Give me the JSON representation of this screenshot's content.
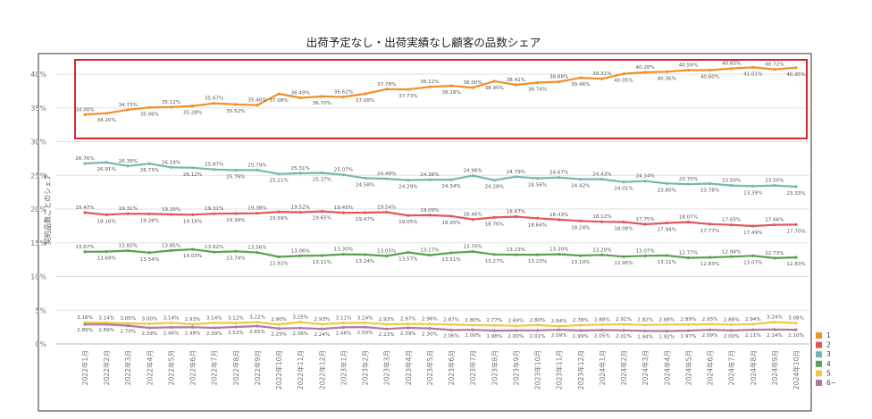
{
  "chart_data": {
    "type": "line",
    "title": "出荷予定なし・出荷実績なし顧客の品数シェア",
    "ylabel": "契約品数ごとのシェア",
    "xlabel": "",
    "ylim": [
      0,
      42
    ],
    "yticks": [
      "0%",
      "5%",
      "10%",
      "15%",
      "20%",
      "25%",
      "30%",
      "35%",
      "40%"
    ],
    "grid": "horizontal",
    "legend_position": "right",
    "highlight_series": "1",
    "highlight_color": "#d62728",
    "categories": [
      "2022年1月",
      "2022年2月",
      "2022年3月",
      "2022年4月",
      "2022年5月",
      "2022年6月",
      "2022年7月",
      "2022年8月",
      "2022年9月",
      "2022年10月",
      "2022年11月",
      "2022年12月",
      "2023年1月",
      "2023年2月",
      "2023年3月",
      "2023年4月",
      "2023年5月",
      "2023年6月",
      "2023年7月",
      "2023年8月",
      "2023年9月",
      "2023年10月",
      "2023年11月",
      "2023年12月",
      "2024年1月",
      "2024年2月",
      "2024年3月",
      "2024年4月",
      "2024年5月",
      "2024年6月",
      "2024年7月",
      "2024年8月",
      "2024年9月",
      "2024年10月"
    ],
    "series": [
      {
        "name": "1",
        "color": "#f28e2b",
        "values": [
          34.0,
          34.2,
          34.73,
          35.06,
          35.12,
          35.28,
          35.67,
          35.52,
          35.4,
          37.08,
          36.49,
          36.7,
          36.62,
          37.08,
          37.78,
          37.73,
          38.12,
          38.28,
          38.0,
          38.95,
          38.41,
          38.74,
          38.88,
          39.46,
          39.31,
          40.05,
          40.28,
          40.36,
          40.59,
          40.6,
          40.83,
          41.01,
          40.72,
          40.95
        ],
        "labels": [
          "34.00%",
          "34.20%",
          "34.73%",
          "35.06%",
          "35.12%",
          "35.28%",
          "35.67%",
          "35.52%",
          "35.40%",
          "37.08%",
          "36.49%",
          "36.70%",
          "36.62%",
          "37.08%",
          "37.78%",
          "37.73%",
          "38.12%",
          "38.28%",
          "38.00%",
          "38.95%",
          "38.41%",
          "38.74%",
          "38.88%",
          "39.46%",
          "39.31%",
          "40.05%",
          "40.28%",
          "40.36%",
          "40.59%",
          "40.60%",
          "40.83%",
          "41.01%",
          "40.72%",
          "40.95%"
        ]
      },
      {
        "name": "3",
        "color": "#76b7b2",
        "values": [
          26.76,
          26.91,
          26.39,
          26.73,
          26.19,
          26.12,
          25.87,
          25.76,
          25.79,
          25.21,
          25.31,
          25.37,
          25.07,
          24.58,
          24.49,
          24.29,
          24.36,
          24.34,
          24.96,
          24.28,
          24.79,
          24.56,
          24.67,
          24.42,
          24.43,
          24.01,
          24.14,
          23.8,
          23.7,
          23.78,
          23.5,
          23.39,
          23.5,
          23.33
        ],
        "labels": [
          "26.76%",
          "26.91%",
          "26.39%",
          "26.73%",
          "26.19%",
          "26.12%",
          "25.87%",
          "25.76%",
          "25.79%",
          "25.21%",
          "25.31%",
          "25.37%",
          "25.07%",
          "24.58%",
          "24.49%",
          "24.29%",
          "24.36%",
          "24.34%",
          "24.96%",
          "24.28%",
          "24.79%",
          "24.56%",
          "24.67%",
          "24.42%",
          "24.43%",
          "24.01%",
          "24.14%",
          "23.80%",
          "23.70%",
          "23.78%",
          "23.50%",
          "23.39%",
          "23.50%",
          "23.33%"
        ]
      },
      {
        "name": "2",
        "color": "#e15759",
        "values": [
          19.47,
          19.16,
          19.31,
          19.28,
          19.2,
          19.16,
          19.31,
          19.34,
          19.38,
          19.59,
          19.52,
          19.65,
          19.45,
          19.47,
          19.54,
          19.05,
          19.09,
          18.95,
          18.46,
          18.76,
          18.87,
          18.64,
          18.43,
          18.24,
          18.12,
          18.08,
          17.75,
          17.94,
          18.07,
          17.77,
          17.65,
          17.49,
          17.66,
          17.7
        ],
        "labels": [
          "19.47%",
          "19.16%",
          "19.31%",
          "19.28%",
          "19.20%",
          "19.16%",
          "19.31%",
          "19.34%",
          "19.38%",
          "19.59%",
          "19.52%",
          "19.65%",
          "19.45%",
          "19.47%",
          "19.54%",
          "19.05%",
          "19.09%",
          "18.95%",
          "18.46%",
          "18.76%",
          "18.87%",
          "18.64%",
          "18.43%",
          "18.24%",
          "18.12%",
          "18.08%",
          "17.75%",
          "17.94%",
          "18.07%",
          "17.77%",
          "17.65%",
          "17.49%",
          "17.66%",
          "17.70%"
        ]
      },
      {
        "name": "4",
        "color": "#59a14f",
        "values": [
          13.67,
          13.69,
          13.83,
          13.54,
          13.85,
          14.03,
          13.62,
          13.74,
          13.56,
          12.92,
          13.06,
          13.11,
          13.3,
          13.24,
          13.05,
          13.57,
          13.17,
          13.51,
          13.7,
          13.27,
          13.23,
          13.23,
          13.3,
          13.1,
          13.2,
          12.95,
          13.07,
          13.11,
          12.77,
          12.83,
          12.94,
          13.07,
          12.73,
          12.83
        ],
        "labels": [
          "13.67%",
          "13.69%",
          "13.83%",
          "13.54%",
          "13.85%",
          "14.03%",
          "13.62%",
          "13.74%",
          "13.56%",
          "12.92%",
          "13.06%",
          "13.11%",
          "13.30%",
          "13.24%",
          "13.05%",
          "13.57%",
          "13.17%",
          "13.51%",
          "13.70%",
          "13.27%",
          "13.23%",
          "13.23%",
          "13.30%",
          "13.10%",
          "13.20%",
          "12.95%",
          "13.07%",
          "13.11%",
          "12.77%",
          "12.83%",
          "12.94%",
          "13.07%",
          "12.73%",
          "12.83%"
        ]
      },
      {
        "name": "5",
        "color": "#edc948",
        "values": [
          3.18,
          3.14,
          3.05,
          3.0,
          3.14,
          2.93,
          3.14,
          3.12,
          3.22,
          2.9,
          3.25,
          2.93,
          3.11,
          3.14,
          2.93,
          2.97,
          2.96,
          2.87,
          2.8,
          2.77,
          2.69,
          2.8,
          2.64,
          2.78,
          2.88,
          2.91,
          2.82,
          2.88,
          2.89,
          2.93,
          2.88,
          2.94,
          3.24,
          3.08
        ],
        "labels": [
          "3.18%",
          "3.14%",
          "3.05%",
          "3.00%",
          "3.14%",
          "2.93%",
          "3.14%",
          "3.12%",
          "3.22%",
          "2.90%",
          "3.25%",
          "2.93%",
          "3.11%",
          "3.14%",
          "2.93%",
          "2.97%",
          "2.96%",
          "2.87%",
          "2.80%",
          "2.77%",
          "2.69%",
          "2.80%",
          "2.64%",
          "2.78%",
          "2.88%",
          "2.91%",
          "2.82%",
          "2.88%",
          "2.89%",
          "2.93%",
          "2.88%",
          "2.94%",
          "3.24%",
          "3.08%"
        ]
      },
      {
        "name": "6~",
        "color": "#b07aa1",
        "values": [
          2.89,
          2.89,
          2.7,
          2.39,
          2.46,
          2.48,
          2.39,
          2.52,
          2.65,
          2.29,
          2.36,
          2.24,
          2.46,
          2.5,
          2.23,
          2.39,
          2.3,
          2.06,
          2.09,
          1.98,
          2.0,
          2.01,
          2.09,
          1.99,
          2.05,
          2.01,
          1.94,
          1.92,
          1.97,
          2.09,
          2.0,
          2.11,
          2.14,
          2.1
        ],
        "labels": [
          "2.89%",
          "2.89%",
          "2.70%",
          "2.39%",
          "2.46%",
          "2.48%",
          "2.39%",
          "2.52%",
          "2.65%",
          "2.29%",
          "2.36%",
          "2.24%",
          "2.46%",
          "2.50%",
          "2.23%",
          "2.39%",
          "2.30%",
          "2.06%",
          "2.09%",
          "1.98%",
          "2.00%",
          "2.01%",
          "2.09%",
          "1.99%",
          "2.05%",
          "2.01%",
          "1.94%",
          "1.92%",
          "1.97%",
          "2.09%",
          "2.00%",
          "2.11%",
          "2.14%",
          "2.10%"
        ]
      }
    ],
    "legend": [
      {
        "name": "1",
        "color": "#f28e2b"
      },
      {
        "name": "2",
        "color": "#e15759"
      },
      {
        "name": "3",
        "color": "#76b7b2"
      },
      {
        "name": "4",
        "color": "#59a14f"
      },
      {
        "name": "5",
        "color": "#edc948"
      },
      {
        "name": "6~",
        "color": "#b07aa1"
      }
    ]
  }
}
